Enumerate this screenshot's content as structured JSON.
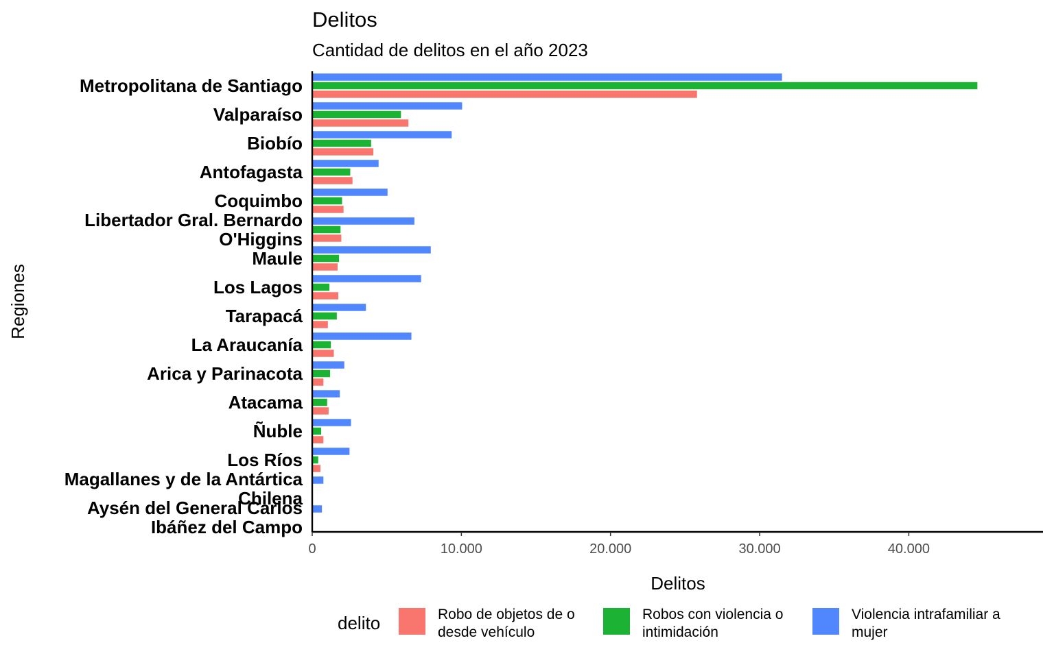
{
  "chart_data": {
    "type": "bar",
    "orientation": "horizontal",
    "title": "Delitos",
    "subtitle": "Cantidad de delitos en el año 2023",
    "xlabel": "Delitos",
    "ylabel": "Regiones",
    "xlim": [
      0,
      49000
    ],
    "x_ticks": [
      0,
      10000,
      20000,
      30000,
      40000
    ],
    "x_tick_labels": [
      "0",
      "10.000",
      "20.000",
      "30.000",
      "40.000"
    ],
    "grid": false,
    "legend_position": "bottom",
    "legend_title": "delito",
    "categories": [
      [
        "Metropolitana de Santiago"
      ],
      [
        "Valparaíso"
      ],
      [
        "Biobío"
      ],
      [
        "Antofagasta"
      ],
      [
        "Coquimbo"
      ],
      [
        "Libertador Gral. Bernardo",
        "O'Higgins"
      ],
      [
        "Maule"
      ],
      [
        "Los Lagos"
      ],
      [
        "Tarapacá"
      ],
      [
        "La Araucanía"
      ],
      [
        "Arica y Parinacota"
      ],
      [
        "Atacama"
      ],
      [
        "Ñuble"
      ],
      [
        "Los Ríos"
      ],
      [
        "Magallanes y de la Antártica",
        "Chilena"
      ],
      [
        "Aysén del General Carlos",
        "Ibáñez del Campo"
      ]
    ],
    "series": [
      {
        "name": [
          "Robo de objetos de o",
          "desde vehículo"
        ],
        "color": "#F8766D",
        "values": [
          25800,
          6450,
          4100,
          2700,
          2100,
          1950,
          1700,
          1750,
          1050,
          1450,
          750,
          1100,
          750,
          550,
          0,
          0
        ]
      },
      {
        "name": [
          "Robos con violencia o",
          "intimidación"
        ],
        "color": "#1CB334",
        "values": [
          44600,
          5950,
          3950,
          2550,
          2000,
          1900,
          1800,
          1150,
          1650,
          1250,
          1200,
          1000,
          600,
          400,
          0,
          0
        ]
      },
      {
        "name": [
          "Violencia intrafamiliar a",
          "mujer"
        ],
        "color": "#5087FF",
        "values": [
          31500,
          10050,
          9350,
          4450,
          5050,
          6850,
          7950,
          7300,
          3600,
          6650,
          2150,
          1850,
          2600,
          2500,
          750,
          650
        ]
      }
    ]
  }
}
